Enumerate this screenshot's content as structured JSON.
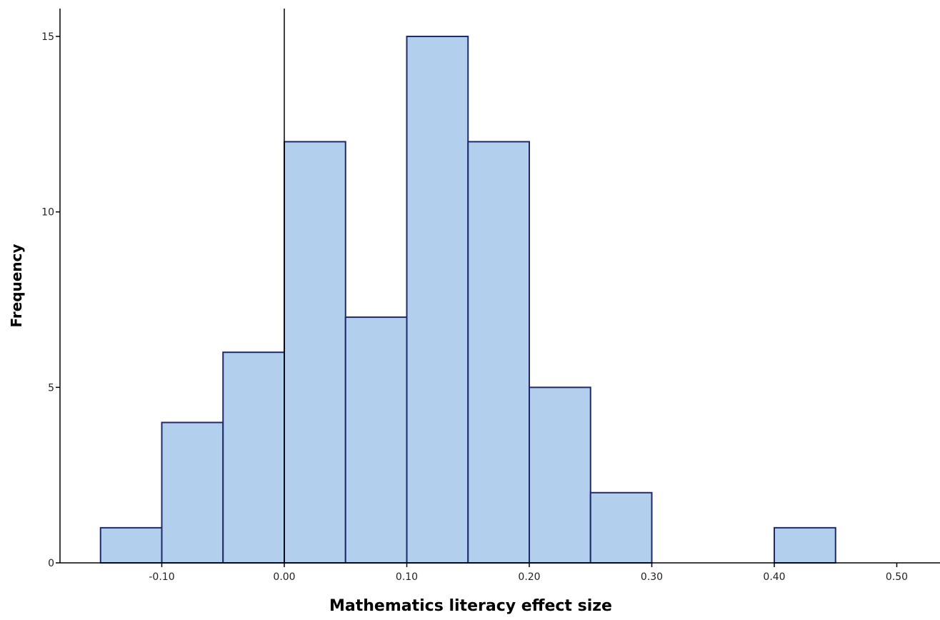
{
  "chart_data": {
    "type": "bar",
    "subtype": "histogram",
    "xlabel": "Mathematics literacy effect size",
    "ylabel": "Frequency",
    "bin_width": 0.05,
    "bins": [
      {
        "start": -0.15,
        "end": -0.1,
        "count": 1
      },
      {
        "start": -0.1,
        "end": -0.05,
        "count": 4
      },
      {
        "start": -0.05,
        "end": 0.0,
        "count": 6
      },
      {
        "start": 0.0,
        "end": 0.05,
        "count": 12
      },
      {
        "start": 0.05,
        "end": 0.1,
        "count": 7
      },
      {
        "start": 0.1,
        "end": 0.15,
        "count": 15
      },
      {
        "start": 0.15,
        "end": 0.2,
        "count": 12
      },
      {
        "start": 0.2,
        "end": 0.25,
        "count": 5
      },
      {
        "start": 0.25,
        "end": 0.3,
        "count": 2
      },
      {
        "start": 0.3,
        "end": 0.35,
        "count": 0
      },
      {
        "start": 0.35,
        "end": 0.4,
        "count": 0
      },
      {
        "start": 0.4,
        "end": 0.45,
        "count": 1
      }
    ],
    "xlim": [
      -0.16,
      0.53
    ],
    "ylim": [
      0,
      15.8
    ],
    "x_ticks": [
      -0.1,
      0.0,
      0.1,
      0.2,
      0.3,
      0.4,
      0.5
    ],
    "x_tick_labels": [
      "-0.10",
      "0.00",
      "0.10",
      "0.20",
      "0.30",
      "0.40",
      "0.50"
    ],
    "y_ticks": [
      0,
      5,
      10,
      15
    ],
    "y_tick_labels": [
      "0",
      "5",
      "10",
      "15"
    ],
    "reference_line_x": 0.0,
    "grid": false,
    "colors": {
      "bar_fill": "#b2cfed",
      "bar_stroke": "#1f2a6b",
      "axis": "#000000",
      "reference_line": "#000000"
    }
  }
}
